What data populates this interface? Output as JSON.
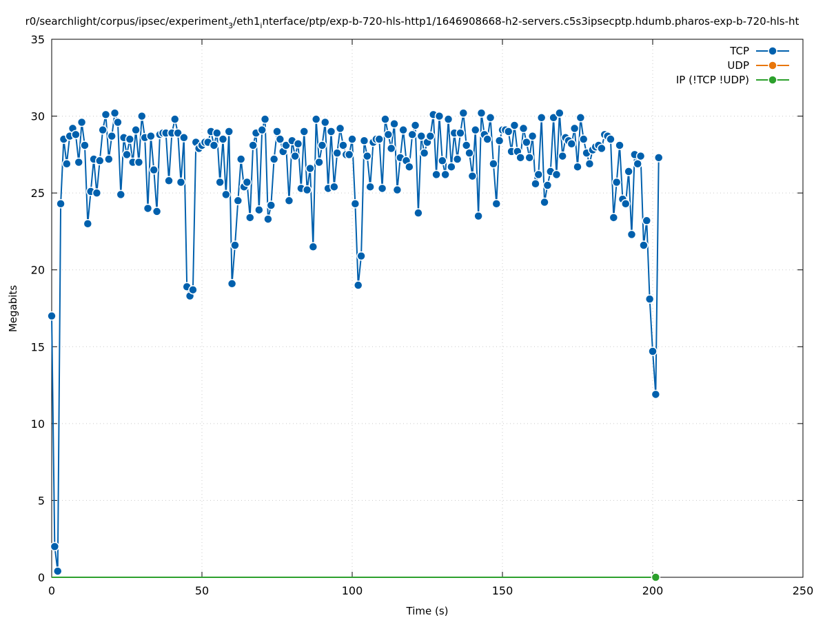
{
  "chart_data": {
    "type": "line",
    "title_parts": [
      {
        "t": "r0/searchlight/corpus/ipsec/experiment"
      },
      {
        "t": "3",
        "sub": true
      },
      {
        "t": "/eth1"
      },
      {
        "t": "i",
        "sub": true
      },
      {
        "t": "nterface/ptp/exp-b-720-hls-http1/1646908668-h2-servers.c5s3ipsecptp.hdumb.pharos-exp-b-720-hls-ht"
      }
    ],
    "xlabel": "Time (s)",
    "ylabel": "Megabits",
    "xlim": [
      0,
      250
    ],
    "ylim": [
      0,
      35
    ],
    "xticks": [
      0,
      50,
      100,
      150,
      200,
      250
    ],
    "yticks": [
      0,
      5,
      10,
      15,
      20,
      25,
      30,
      35
    ],
    "grid": true,
    "legend_position": "top-right",
    "series": [
      {
        "name": "TCP",
        "color": "#0060ad",
        "values": [
          17,
          2,
          0.4,
          24.3,
          28.5,
          26.9,
          28.7,
          29.2,
          28.8,
          27,
          29.6,
          28.1,
          23,
          25.1,
          27.2,
          25,
          27.1,
          29.1,
          30.1,
          27.2,
          28.7,
          30.2,
          29.6,
          24.9,
          28.6,
          27.5,
          28.5,
          27,
          29.1,
          27,
          30,
          28.6,
          24,
          28.7,
          26.5,
          23.8,
          28.8,
          28.9,
          28.9,
          25.8,
          28.9,
          29.8,
          28.9,
          25.7,
          28.6,
          18.9,
          18.3,
          18.7,
          28.3,
          27.9,
          28.1,
          28.3,
          28.3,
          29,
          28.1,
          28.9,
          25.7,
          28.5,
          24.9,
          29,
          19.1,
          21.6,
          24.5,
          27.2,
          25.4,
          25.7,
          23.4,
          28.1,
          28.9,
          23.9,
          29.1,
          29.8,
          23.3,
          24.2,
          27.2,
          29,
          28.5,
          27.7,
          28.1,
          24.5,
          28.4,
          27.4,
          28.2,
          25.3,
          29,
          25.2,
          26.6,
          21.5,
          29.8,
          27,
          28.1,
          29.6,
          25.3,
          29,
          25.4,
          27.6,
          29.2,
          28.1,
          27.5,
          27.5,
          28.5,
          24.3,
          19,
          20.9,
          28.4,
          27.4,
          25.4,
          28.3,
          28.5,
          28.5,
          25.3,
          29.8,
          28.8,
          27.9,
          29.5,
          25.2,
          27.3,
          29.1,
          27.1,
          26.7,
          28.8,
          29.4,
          23.7,
          28.7,
          27.6,
          28.3,
          28.7,
          30.1,
          26.2,
          30,
          27.1,
          26.2,
          29.8,
          26.7,
          28.9,
          27.2,
          28.9,
          30.2,
          28.1,
          27.6,
          26.1,
          29.1,
          23.5,
          30.2,
          28.8,
          28.5,
          29.9,
          26.9,
          24.3,
          28.4,
          29.1,
          29.1,
          29,
          27.7,
          29.4,
          27.7,
          27.3,
          29.2,
          28.3,
          27.3,
          28.7,
          25.6,
          26.2,
          29.9,
          24.4,
          25.5,
          26.4,
          29.9,
          26.2,
          30.2,
          27.4,
          28.6,
          28.4,
          28.2,
          29.2,
          26.7,
          29.9,
          28.5,
          27.6,
          26.9,
          27.8,
          28,
          28.1,
          27.9,
          28.8,
          28.7,
          28.5,
          23.4,
          25.7,
          28.1,
          24.6,
          24.3,
          26.4,
          22.3,
          27.5,
          26.9,
          27.4,
          21.6,
          23.2,
          18.1,
          14.7,
          11.9,
          27.3
        ]
      },
      {
        "name": "UDP",
        "color": "#e8760a",
        "values": []
      },
      {
        "name": "IP (!TCP  !UDP)",
        "color": "#2ca02c",
        "x": [
          0,
          201
        ],
        "values": [
          0,
          0
        ]
      }
    ]
  }
}
